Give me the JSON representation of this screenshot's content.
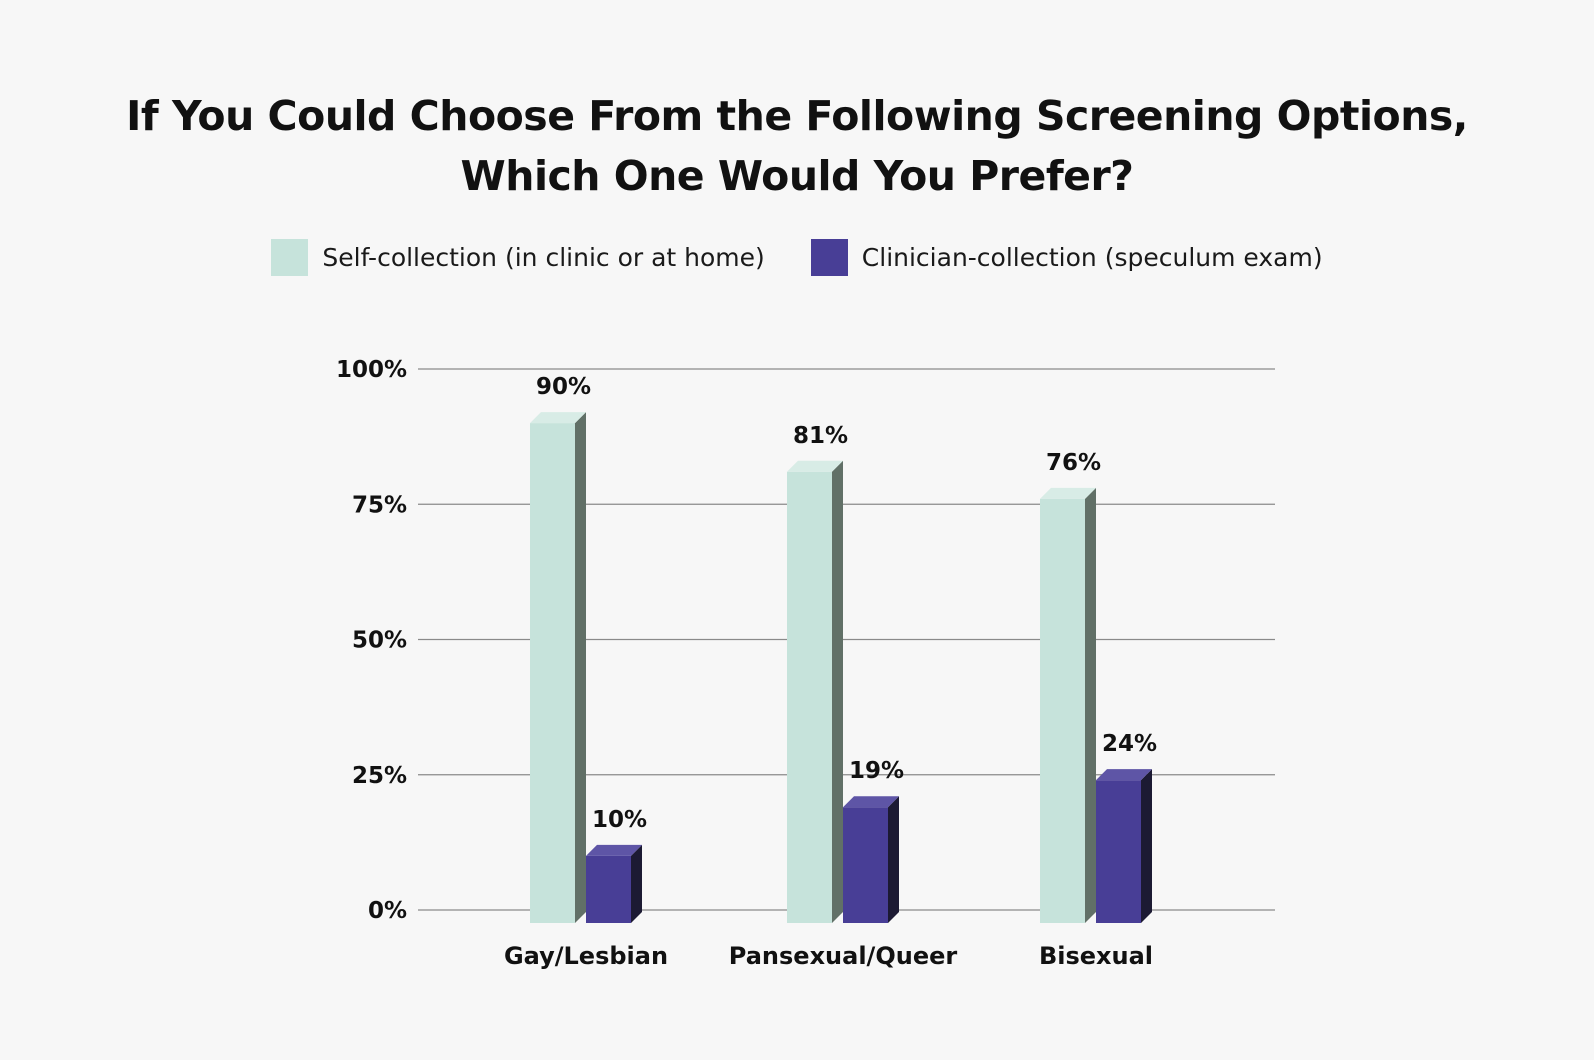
{
  "colors": {
    "background": "#f7f7f7",
    "self_collection": "#c6e3db",
    "clinician_collection": "#483e96",
    "gridline": "#8a8a8a"
  },
  "chart_data": {
    "type": "bar",
    "title_lines": [
      "If You Could Choose From the Following Screening Options,",
      "Which One Would You Prefer?"
    ],
    "categories": [
      "Gay/Lesbian",
      "Pansexual/Queer",
      "Bisexual"
    ],
    "series": [
      {
        "name": "Self-collection (in clinic or at home)",
        "values": [
          90,
          81,
          76
        ],
        "value_labels": [
          "90%",
          "81%",
          "76%"
        ]
      },
      {
        "name": "Clinician-collection (speculum exam)",
        "values": [
          10,
          19,
          24
        ],
        "value_labels": [
          "10%",
          "19%",
          "24%"
        ]
      }
    ],
    "yticks": [
      0,
      25,
      50,
      75,
      100
    ],
    "ytick_labels": [
      "0%",
      "25%",
      "50%",
      "75%",
      "100%"
    ],
    "ylim": [
      0,
      100
    ],
    "grid": true,
    "legend_position": "top-center",
    "style": "3d"
  }
}
